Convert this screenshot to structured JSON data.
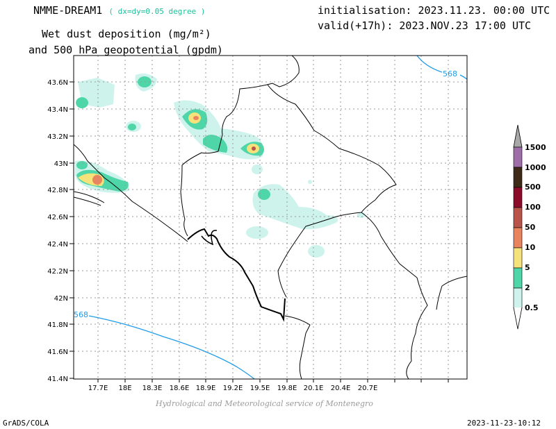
{
  "header": {
    "model": "NMME-DREAM1",
    "resolution": "( dx=dy=0.05 degree )",
    "field_line1": "Wet dust deposition (mg/m²)",
    "field_line2": "and 500 hPa geopotential (gpdm)",
    "init": "initialisation: 2023.11.23. 00:00 UTC",
    "valid": "valid(+17h): 2023.NOV.23 17:00 UTC"
  },
  "map": {
    "lat_labels": [
      "43.6N",
      "43.4N",
      "43.2N",
      "43N",
      "42.8N",
      "42.6N",
      "42.4N",
      "42.2N",
      "42N",
      "41.8N",
      "41.6N",
      "41.4N"
    ],
    "lon_labels": [
      "17.7E",
      "18E",
      "18.3E",
      "18.6E",
      "18.9E",
      "19.2E",
      "19.5E",
      "19.8E",
      "20.1E",
      "20.4E",
      "20.7E"
    ],
    "contour_labels": [
      "568",
      "568"
    ],
    "contour_color": "#1e9be8"
  },
  "colorbar": {
    "labels": [
      "1500",
      "1000",
      "500",
      "100",
      "50",
      "10",
      "5",
      "2",
      "0.5"
    ],
    "colors": [
      "#9e6ea8",
      "#3d2a17",
      "#8c0a2a",
      "#b8544a",
      "#e9845e",
      "#f6e27a",
      "#4fd6a8",
      "#cdf3ec"
    ]
  },
  "footer": {
    "credit": "Hydrological and Meteorological service of Montenegro",
    "software": "GrADS/COLA",
    "timestamp": "2023-11-23-10:12"
  }
}
